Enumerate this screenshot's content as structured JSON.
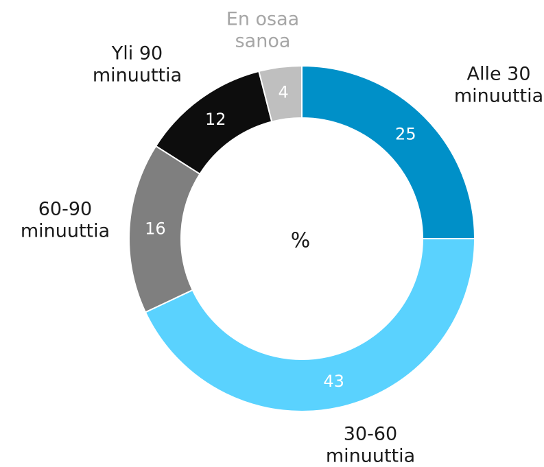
{
  "chart_data": {
    "type": "donut",
    "center_label": "%",
    "categories": [
      "Alle 30\nminuuttia",
      "30-60\nminuuttia",
      "60-90\nminuuttia",
      "Yli 90\nminuuttia",
      "En osaa\nsanoa"
    ],
    "values": [
      25,
      43,
      16,
      12,
      4
    ],
    "colors": [
      "#0090c8",
      "#5ad2fe",
      "#7f7f7f",
      "#0d0d0d",
      "#bfbfbf"
    ],
    "label_colors": [
      "#1a1a1a",
      "#1a1a1a",
      "#1a1a1a",
      "#1a1a1a",
      "#a6a6a6"
    ]
  }
}
